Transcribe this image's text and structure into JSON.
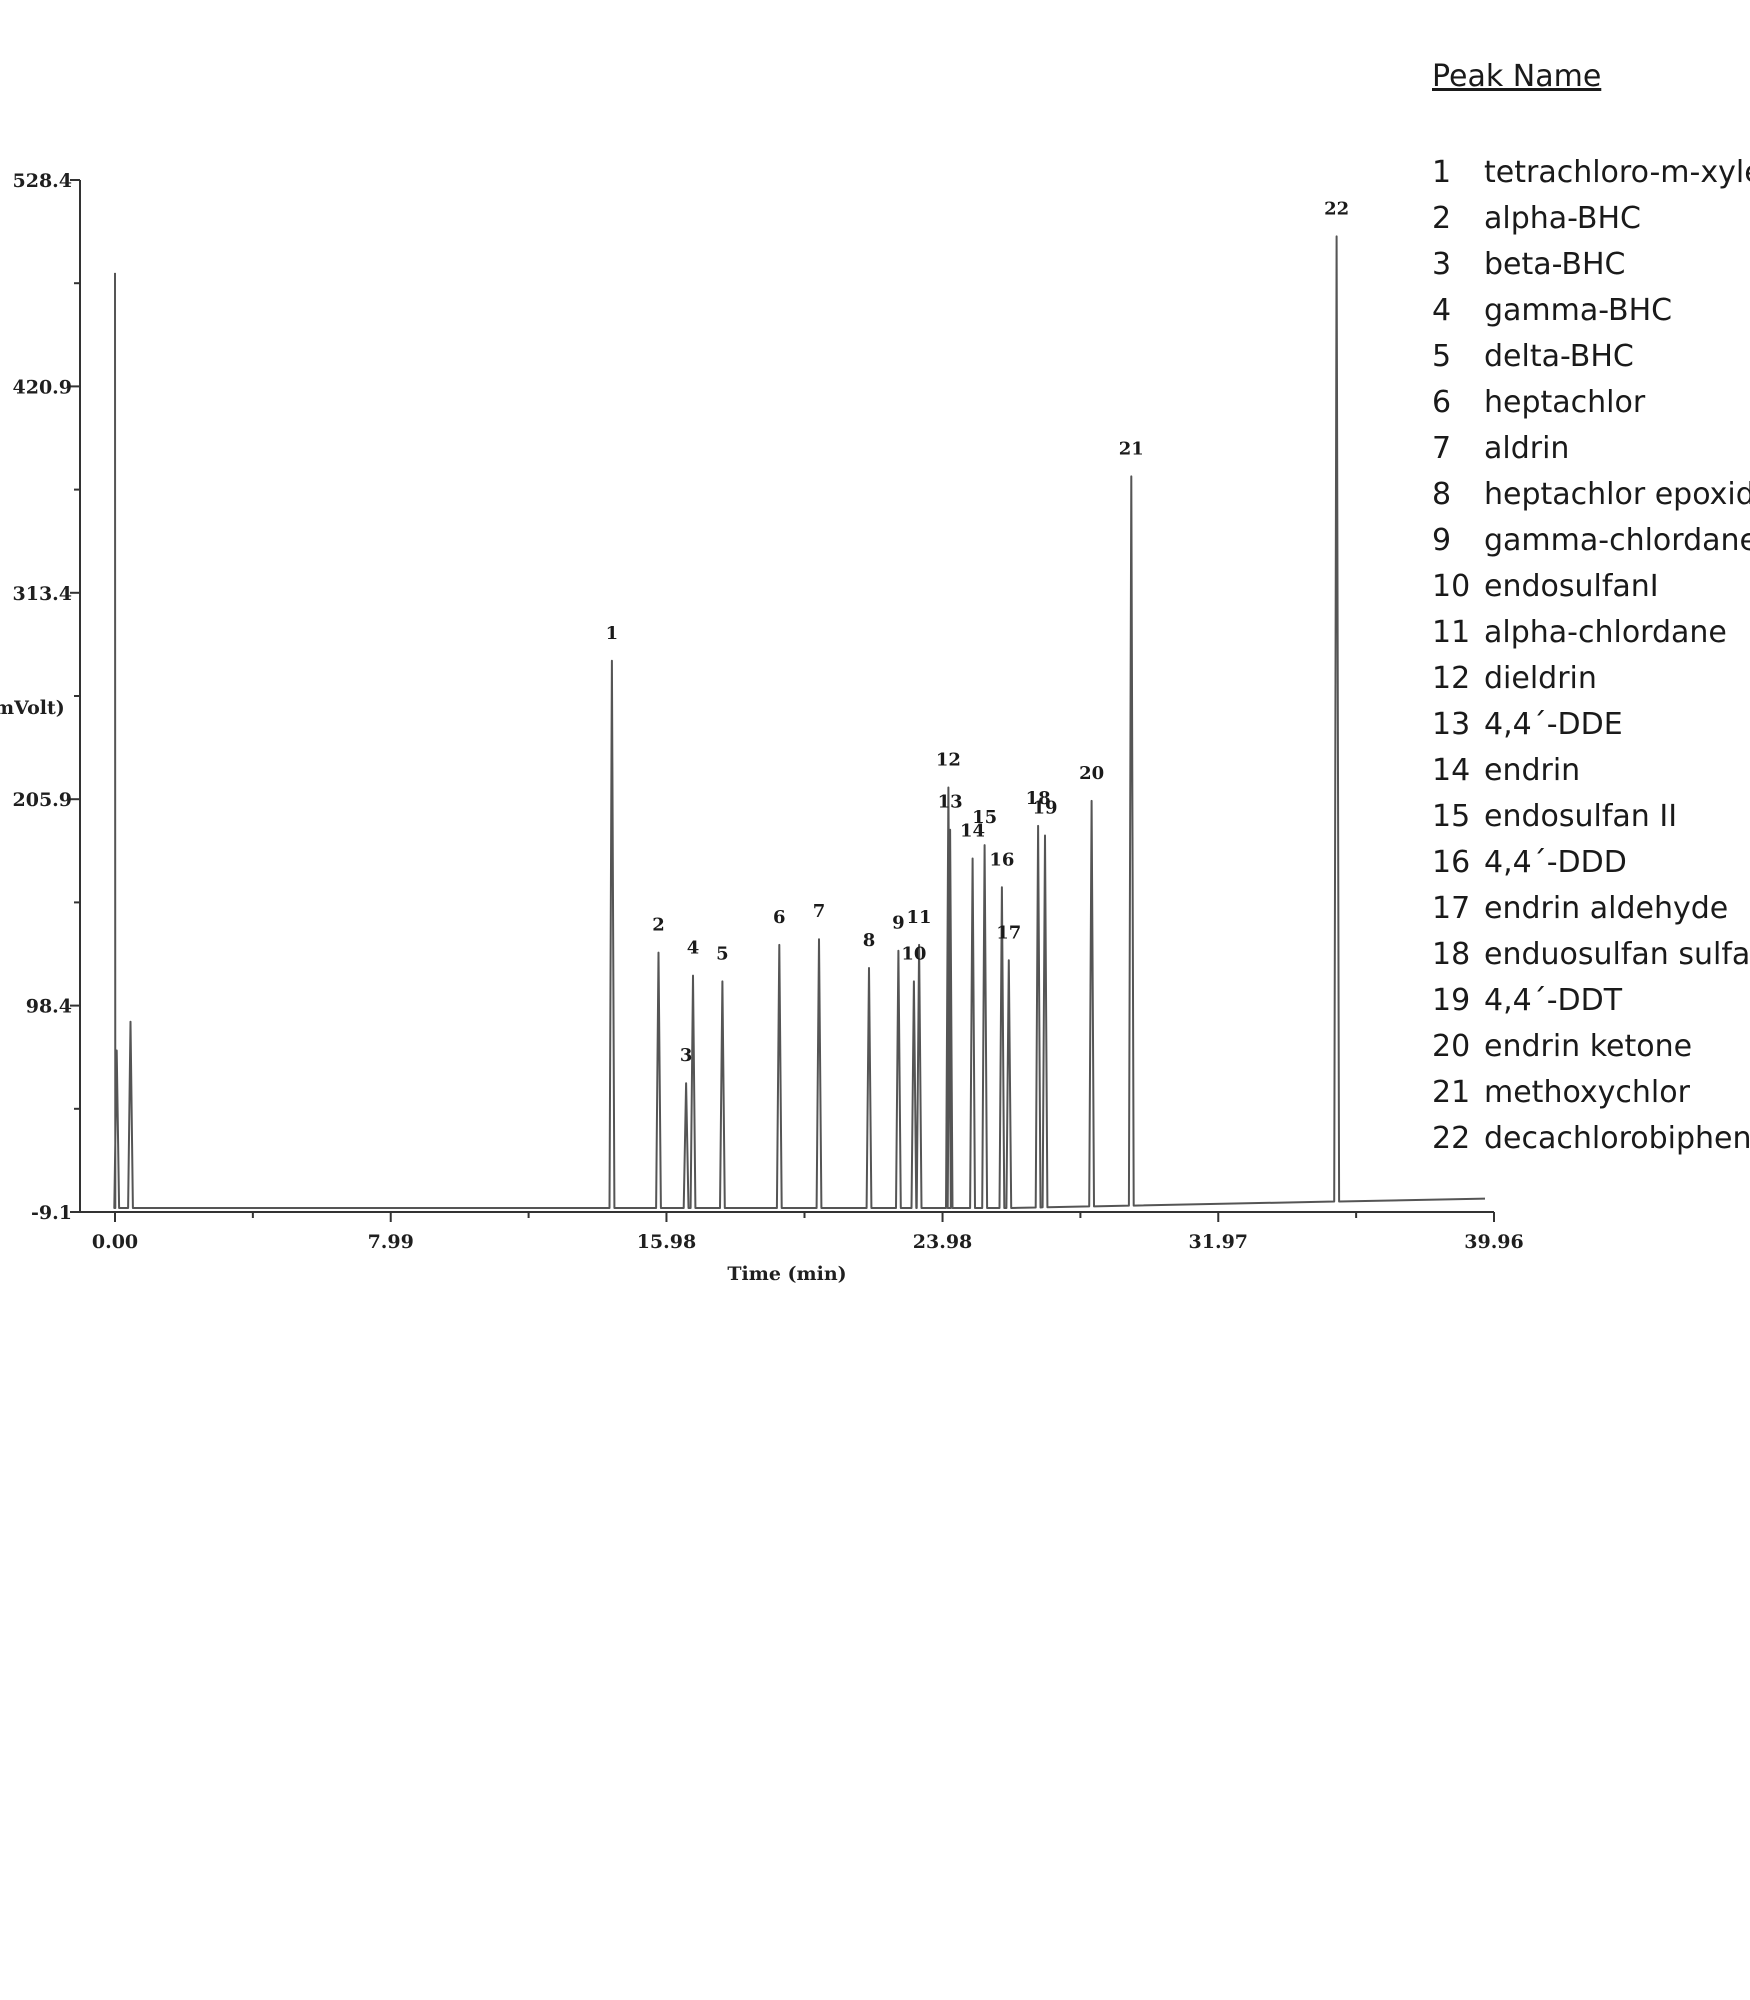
{
  "chart_data": {
    "type": "line",
    "title": "",
    "xlabel": "Time (min)",
    "ylabel": "mVolt)",
    "xlim": [
      0.0,
      39.96
    ],
    "ylim": [
      -9.1,
      528.4
    ],
    "x_ticks": [
      "0.00",
      "7.99",
      "15.98",
      "23.98",
      "31.97",
      "39.96"
    ],
    "y_ticks": [
      "-9.1",
      "98.4",
      "205.9",
      "313.4",
      "420.9",
      "528.4"
    ],
    "grid": false,
    "line_color": "#555555",
    "solvent_peaks": [
      {
        "x": 0.05,
        "y": 75
      },
      {
        "x": 0.45,
        "y": 90
      }
    ],
    "peaks": [
      {
        "id": "1",
        "x": 14.4,
        "y": 278
      },
      {
        "id": "2",
        "x": 15.75,
        "y": 126
      },
      {
        "id": "3",
        "x": 16.55,
        "y": 58
      },
      {
        "id": "4",
        "x": 16.75,
        "y": 114
      },
      {
        "id": "5",
        "x": 17.6,
        "y": 111
      },
      {
        "id": "6",
        "x": 19.25,
        "y": 130
      },
      {
        "id": "7",
        "x": 20.4,
        "y": 133
      },
      {
        "id": "8",
        "x": 21.85,
        "y": 118
      },
      {
        "id": "9",
        "x": 22.7,
        "y": 127
      },
      {
        "id": "10",
        "x": 23.15,
        "y": 111
      },
      {
        "id": "11",
        "x": 23.3,
        "y": 130
      },
      {
        "id": "12",
        "x": 24.15,
        "y": 212
      },
      {
        "id": "13",
        "x": 24.2,
        "y": 190
      },
      {
        "id": "14",
        "x": 24.85,
        "y": 175
      },
      {
        "id": "15",
        "x": 25.2,
        "y": 182
      },
      {
        "id": "16",
        "x": 25.7,
        "y": 160
      },
      {
        "id": "17",
        "x": 25.9,
        "y": 122
      },
      {
        "id": "18",
        "x": 26.75,
        "y": 192
      },
      {
        "id": "19",
        "x": 26.95,
        "y": 187
      },
      {
        "id": "20",
        "x": 28.3,
        "y": 205
      },
      {
        "id": "21",
        "x": 29.45,
        "y": 374
      },
      {
        "id": "22",
        "x": 35.4,
        "y": 499
      }
    ],
    "legend": {
      "title": "Peak Name",
      "placement": "right",
      "entries": [
        {
          "num": "1",
          "name": "tetrachloro-m-xylene"
        },
        {
          "num": "2",
          "name": "alpha-BHC"
        },
        {
          "num": "3",
          "name": "beta-BHC"
        },
        {
          "num": "4",
          "name": "gamma-BHC"
        },
        {
          "num": "5",
          "name": "delta-BHC"
        },
        {
          "num": "6",
          "name": "heptachlor"
        },
        {
          "num": "7",
          "name": "aldrin"
        },
        {
          "num": "8",
          "name": "heptachlor epoxide"
        },
        {
          "num": "9",
          "name": "gamma-chlordane"
        },
        {
          "num": "10",
          "name": "endosulfanI"
        },
        {
          "num": "11",
          "name": "alpha-chlordane"
        },
        {
          "num": "12",
          "name": "dieldrin"
        },
        {
          "num": "13",
          "name": "4,4´-DDE"
        },
        {
          "num": "14",
          "name": "endrin"
        },
        {
          "num": "15",
          "name": "endosulfan II"
        },
        {
          "num": "16",
          "name": "4,4´-DDD"
        },
        {
          "num": "17",
          "name": "endrin aldehyde"
        },
        {
          "num": "18",
          "name": "enduosulfan sulfate"
        },
        {
          "num": "19",
          "name": "4,4´-DDT"
        },
        {
          "num": "20",
          "name": "endrin ketone"
        },
        {
          "num": "21",
          "name": "methoxychlor"
        },
        {
          "num": "22",
          "name": "decachlorobiphenyl"
        }
      ]
    }
  }
}
